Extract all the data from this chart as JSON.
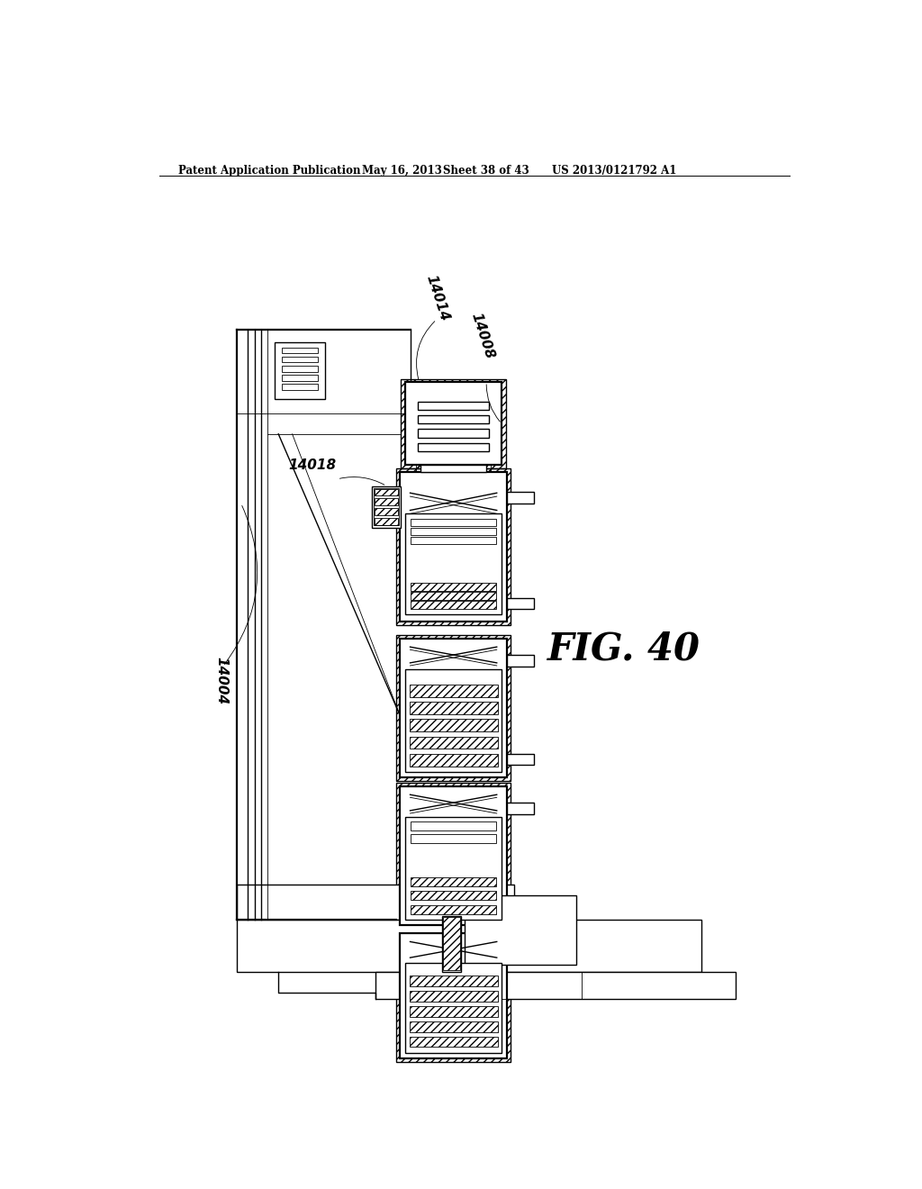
{
  "title": "Patent Application Publication",
  "date": "May 16, 2013",
  "sheet": "Sheet 38 of 43",
  "patent_num": "US 2013/0121792 A1",
  "fig_label": "FIG. 40",
  "label_14004": "14004",
  "label_14008": "14008",
  "label_14014": "14014",
  "label_14018": "14018",
  "bg_color": "#ffffff",
  "line_color": "#000000"
}
